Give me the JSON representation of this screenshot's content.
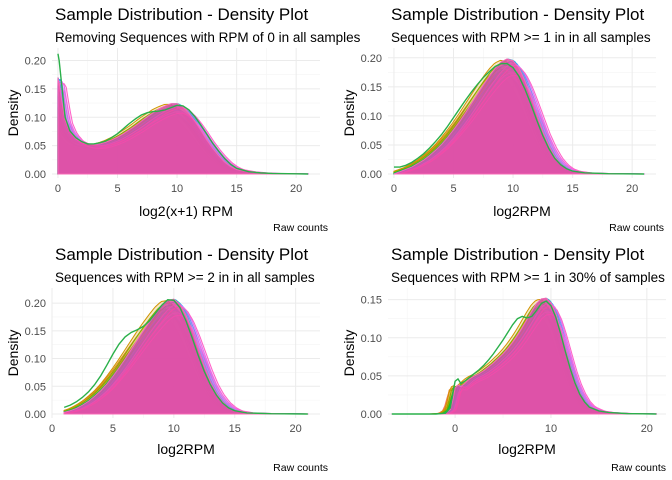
{
  "colors": {
    "sample_palette": [
      "#F8766D",
      "#E7851E",
      "#D09400",
      "#B2A100",
      "#89AC00",
      "#45B500",
      "#00BC51",
      "#00C087",
      "#00C0B2",
      "#00BCD6",
      "#00B3F2",
      "#29A3FF",
      "#9C8DFF",
      "#D277FF",
      "#F166E8",
      "#FF61C7",
      "#FF6C91"
    ],
    "highlight_green": "#2ab04a",
    "fill_main": "#f0449c"
  },
  "chart_data": [
    {
      "type": "area",
      "title": "Sample Distribution - Density Plot",
      "subtitle": "Removing Sequences with RPM of 0 in all samples",
      "xlabel": "log2(x+1) RPM",
      "ylabel": "Density",
      "caption": "Raw counts",
      "xlim": [
        -0.5,
        22
      ],
      "ylim": [
        0,
        0.215
      ],
      "xticks": [
        0,
        5,
        10,
        15,
        20
      ],
      "xtick_labels": [
        "0",
        "5",
        "10",
        "15",
        "20"
      ],
      "yticks": [
        0.0,
        0.05,
        0.1,
        0.15,
        0.2
      ],
      "ytick_labels": [
        "0.00",
        "0.05",
        "0.10",
        "0.15",
        "0.20"
      ],
      "grid": true,
      "curve": [
        [
          0,
          0.17
        ],
        [
          0.1,
          0.16
        ],
        [
          0.3,
          0.13
        ],
        [
          0.6,
          0.095
        ],
        [
          1,
          0.075
        ],
        [
          1.5,
          0.062
        ],
        [
          2,
          0.056
        ],
        [
          2.5,
          0.053
        ],
        [
          3,
          0.052
        ],
        [
          3.5,
          0.053
        ],
        [
          4,
          0.056
        ],
        [
          4.5,
          0.06
        ],
        [
          5,
          0.065
        ],
        [
          5.5,
          0.071
        ],
        [
          6,
          0.078
        ],
        [
          6.5,
          0.085
        ],
        [
          7,
          0.093
        ],
        [
          7.5,
          0.101
        ],
        [
          8,
          0.108
        ],
        [
          8.5,
          0.115
        ],
        [
          9,
          0.12
        ],
        [
          9.5,
          0.124
        ],
        [
          10,
          0.124
        ],
        [
          10.5,
          0.118
        ],
        [
          11,
          0.107
        ],
        [
          11.5,
          0.093
        ],
        [
          12,
          0.077
        ],
        [
          12.5,
          0.06
        ],
        [
          13,
          0.045
        ],
        [
          13.5,
          0.032
        ],
        [
          14,
          0.021
        ],
        [
          14.5,
          0.013
        ],
        [
          15,
          0.008
        ],
        [
          16,
          0.004
        ],
        [
          17,
          0.002
        ],
        [
          18,
          0.001
        ],
        [
          20,
          0.0003
        ],
        [
          21,
          0.0
        ]
      ],
      "highlight_curve": [
        [
          0,
          0.212
        ],
        [
          0.1,
          0.2
        ],
        [
          0.3,
          0.16
        ],
        [
          0.6,
          0.1
        ],
        [
          1,
          0.076
        ],
        [
          1.5,
          0.064
        ],
        [
          2,
          0.057
        ],
        [
          2.5,
          0.053
        ],
        [
          3,
          0.053
        ],
        [
          3.5,
          0.055
        ],
        [
          4,
          0.058
        ],
        [
          4.5,
          0.064
        ],
        [
          5,
          0.071
        ],
        [
          5.5,
          0.08
        ],
        [
          6,
          0.089
        ],
        [
          6.5,
          0.097
        ],
        [
          7,
          0.104
        ],
        [
          7.5,
          0.108
        ],
        [
          8,
          0.11
        ],
        [
          8.5,
          0.111
        ],
        [
          9,
          0.113
        ],
        [
          9.5,
          0.117
        ],
        [
          10,
          0.121
        ],
        [
          10.5,
          0.12
        ],
        [
          11,
          0.113
        ],
        [
          11.5,
          0.101
        ],
        [
          12,
          0.086
        ],
        [
          12.5,
          0.07
        ],
        [
          13,
          0.054
        ],
        [
          13.5,
          0.04
        ],
        [
          14,
          0.027
        ],
        [
          14.5,
          0.017
        ],
        [
          15,
          0.01
        ],
        [
          16,
          0.004
        ],
        [
          17,
          0.002
        ],
        [
          18,
          0.001
        ],
        [
          20,
          0.0003
        ],
        [
          21,
          0.0
        ]
      ]
    },
    {
      "type": "area",
      "title": "Sample Distribution - Density Plot",
      "subtitle": "Sequences with RPM >= 1 in in all samples",
      "xlabel": "log2RPM",
      "ylabel": "Density",
      "caption": "Raw counts",
      "xlim": [
        -0.5,
        22
      ],
      "ylim": [
        0,
        0.21
      ],
      "xticks": [
        0,
        5,
        10,
        15,
        20
      ],
      "xtick_labels": [
        "0",
        "5",
        "10",
        "15",
        "20"
      ],
      "yticks": [
        0.0,
        0.05,
        0.1,
        0.15,
        0.2
      ],
      "ytick_labels": [
        "0.00",
        "0.05",
        "0.10",
        "0.15",
        "0.20"
      ],
      "grid": true,
      "curve": [
        [
          0,
          0.0
        ],
        [
          0.5,
          0.004
        ],
        [
          1,
          0.008
        ],
        [
          1.5,
          0.012
        ],
        [
          2,
          0.018
        ],
        [
          2.5,
          0.024
        ],
        [
          3,
          0.032
        ],
        [
          3.5,
          0.041
        ],
        [
          4,
          0.051
        ],
        [
          4.5,
          0.063
        ],
        [
          5,
          0.076
        ],
        [
          5.5,
          0.09
        ],
        [
          6,
          0.105
        ],
        [
          6.5,
          0.121
        ],
        [
          7,
          0.137
        ],
        [
          7.5,
          0.153
        ],
        [
          8,
          0.168
        ],
        [
          8.5,
          0.182
        ],
        [
          9,
          0.193
        ],
        [
          9.5,
          0.198
        ],
        [
          10,
          0.195
        ],
        [
          10.5,
          0.182
        ],
        [
          11,
          0.16
        ],
        [
          11.5,
          0.132
        ],
        [
          12,
          0.102
        ],
        [
          12.5,
          0.073
        ],
        [
          13,
          0.049
        ],
        [
          13.5,
          0.03
        ],
        [
          14,
          0.017
        ],
        [
          14.5,
          0.009
        ],
        [
          15,
          0.005
        ],
        [
          16,
          0.002
        ],
        [
          18,
          0.0005
        ],
        [
          21,
          0.0
        ]
      ],
      "highlight_curve": [
        [
          0,
          0.012
        ],
        [
          0.5,
          0.012
        ],
        [
          1,
          0.015
        ],
        [
          1.5,
          0.02
        ],
        [
          2,
          0.027
        ],
        [
          2.5,
          0.035
        ],
        [
          3,
          0.045
        ],
        [
          3.5,
          0.056
        ],
        [
          4,
          0.068
        ],
        [
          4.5,
          0.082
        ],
        [
          5,
          0.097
        ],
        [
          5.5,
          0.112
        ],
        [
          6,
          0.127
        ],
        [
          6.5,
          0.141
        ],
        [
          7,
          0.154
        ],
        [
          7.5,
          0.166
        ],
        [
          8,
          0.176
        ],
        [
          8.5,
          0.185
        ],
        [
          9,
          0.19
        ],
        [
          9.5,
          0.19
        ],
        [
          10,
          0.183
        ],
        [
          10.5,
          0.168
        ],
        [
          11,
          0.146
        ],
        [
          11.5,
          0.12
        ],
        [
          12,
          0.092
        ],
        [
          12.5,
          0.066
        ],
        [
          13,
          0.044
        ],
        [
          13.5,
          0.027
        ],
        [
          14,
          0.016
        ],
        [
          14.5,
          0.009
        ],
        [
          15,
          0.005
        ],
        [
          16,
          0.002
        ],
        [
          18,
          0.0005
        ],
        [
          21,
          0.0
        ]
      ]
    },
    {
      "type": "area",
      "title": "Sample Distribution - Density Plot",
      "subtitle": "Sequences with RPM >= 2 in in all samples",
      "xlabel": "log2RPM",
      "ylabel": "Density",
      "caption": "Raw counts",
      "xlim": [
        0,
        22
      ],
      "ylim": [
        0,
        0.22
      ],
      "xticks": [
        0,
        5,
        10,
        15,
        20
      ],
      "xtick_labels": [
        "0",
        "5",
        "10",
        "15",
        "20"
      ],
      "yticks": [
        0.0,
        0.05,
        0.1,
        0.15,
        0.2
      ],
      "ytick_labels": [
        "0.00",
        "0.05",
        "0.10",
        "0.15",
        "0.20"
      ],
      "grid": true,
      "curve": [
        [
          1,
          0.003
        ],
        [
          1.5,
          0.006
        ],
        [
          2,
          0.01
        ],
        [
          2.5,
          0.016
        ],
        [
          3,
          0.023
        ],
        [
          3.5,
          0.032
        ],
        [
          4,
          0.042
        ],
        [
          4.5,
          0.054
        ],
        [
          5,
          0.068
        ],
        [
          5.5,
          0.083
        ],
        [
          6,
          0.099
        ],
        [
          6.5,
          0.116
        ],
        [
          7,
          0.133
        ],
        [
          7.5,
          0.15
        ],
        [
          8,
          0.166
        ],
        [
          8.5,
          0.181
        ],
        [
          9,
          0.195
        ],
        [
          9.5,
          0.205
        ],
        [
          10,
          0.207
        ],
        [
          10.5,
          0.198
        ],
        [
          11,
          0.178
        ],
        [
          11.5,
          0.15
        ],
        [
          12,
          0.118
        ],
        [
          12.5,
          0.086
        ],
        [
          13,
          0.058
        ],
        [
          13.5,
          0.037
        ],
        [
          14,
          0.022
        ],
        [
          14.5,
          0.012
        ],
        [
          15,
          0.006
        ],
        [
          16,
          0.002
        ],
        [
          18,
          0.0005
        ],
        [
          21,
          0.0
        ]
      ],
      "highlight_curve": [
        [
          1,
          0.012
        ],
        [
          1.5,
          0.016
        ],
        [
          2,
          0.022
        ],
        [
          2.5,
          0.03
        ],
        [
          3,
          0.04
        ],
        [
          3.5,
          0.053
        ],
        [
          4,
          0.069
        ],
        [
          4.5,
          0.088
        ],
        [
          5,
          0.108
        ],
        [
          5.5,
          0.126
        ],
        [
          6,
          0.139
        ],
        [
          6.5,
          0.147
        ],
        [
          7,
          0.152
        ],
        [
          7.5,
          0.158
        ],
        [
          8,
          0.168
        ],
        [
          8.5,
          0.182
        ],
        [
          9,
          0.196
        ],
        [
          9.5,
          0.206
        ],
        [
          10,
          0.205
        ],
        [
          10.5,
          0.192
        ],
        [
          11,
          0.168
        ],
        [
          11.5,
          0.138
        ],
        [
          12,
          0.106
        ],
        [
          12.5,
          0.077
        ],
        [
          13,
          0.053
        ],
        [
          13.5,
          0.034
        ],
        [
          14,
          0.02
        ],
        [
          14.5,
          0.011
        ],
        [
          15,
          0.006
        ],
        [
          16,
          0.002
        ],
        [
          18,
          0.0005
        ],
        [
          21,
          0.0
        ]
      ]
    },
    {
      "type": "area",
      "title": "Sample Distribution - Density Plot",
      "subtitle": "Sequences with RPM >= 1 in 30% of samples",
      "xlabel": "log2RPM",
      "ylabel": "Density",
      "caption": "Raw counts",
      "xlim": [
        -7,
        22
      ],
      "ylim": [
        0,
        0.16
      ],
      "xticks": [
        0,
        10,
        20
      ],
      "xtick_labels": [
        "0",
        "10",
        "20"
      ],
      "yticks": [
        0.0,
        0.05,
        0.1,
        0.15
      ],
      "ytick_labels": [
        "0.00",
        "0.05",
        "0.10",
        "0.15"
      ],
      "grid": true,
      "curve": [
        [
          -6.6,
          0.0
        ],
        [
          -2,
          0.0
        ],
        [
          -1,
          0.001
        ],
        [
          -0.5,
          0.006
        ],
        [
          -0.2,
          0.02
        ],
        [
          0,
          0.034
        ],
        [
          0.3,
          0.038
        ],
        [
          0.6,
          0.036
        ],
        [
          1,
          0.04
        ],
        [
          1.5,
          0.046
        ],
        [
          2,
          0.05
        ],
        [
          2.5,
          0.053
        ],
        [
          3,
          0.057
        ],
        [
          3.5,
          0.062
        ],
        [
          4,
          0.067
        ],
        [
          4.5,
          0.073
        ],
        [
          5,
          0.079
        ],
        [
          5.5,
          0.086
        ],
        [
          6,
          0.094
        ],
        [
          6.5,
          0.103
        ],
        [
          7,
          0.113
        ],
        [
          7.5,
          0.124
        ],
        [
          8,
          0.135
        ],
        [
          8.5,
          0.145
        ],
        [
          9,
          0.151
        ],
        [
          9.5,
          0.152
        ],
        [
          10,
          0.146
        ],
        [
          10.5,
          0.132
        ],
        [
          11,
          0.111
        ],
        [
          11.5,
          0.087
        ],
        [
          12,
          0.063
        ],
        [
          12.5,
          0.043
        ],
        [
          13,
          0.028
        ],
        [
          13.5,
          0.017
        ],
        [
          14,
          0.01
        ],
        [
          15,
          0.004
        ],
        [
          16,
          0.002
        ],
        [
          18,
          0.0005
        ],
        [
          21,
          0.0
        ]
      ],
      "highlight_curve": [
        [
          -6.6,
          0.0
        ],
        [
          -2,
          0.0
        ],
        [
          -1,
          0.001
        ],
        [
          -0.5,
          0.008
        ],
        [
          -0.2,
          0.03
        ],
        [
          0,
          0.043
        ],
        [
          0.3,
          0.046
        ],
        [
          0.6,
          0.04
        ],
        [
          1,
          0.043
        ],
        [
          1.5,
          0.048
        ],
        [
          2,
          0.053
        ],
        [
          2.5,
          0.058
        ],
        [
          3,
          0.064
        ],
        [
          3.5,
          0.071
        ],
        [
          4,
          0.079
        ],
        [
          4.5,
          0.088
        ],
        [
          5,
          0.097
        ],
        [
          5.5,
          0.107
        ],
        [
          6,
          0.117
        ],
        [
          6.5,
          0.125
        ],
        [
          7,
          0.128
        ],
        [
          7.5,
          0.126
        ],
        [
          8,
          0.128
        ],
        [
          8.5,
          0.136
        ],
        [
          9,
          0.145
        ],
        [
          9.5,
          0.148
        ],
        [
          10,
          0.142
        ],
        [
          10.5,
          0.127
        ],
        [
          11,
          0.106
        ],
        [
          11.5,
          0.082
        ],
        [
          12,
          0.06
        ],
        [
          12.5,
          0.041
        ],
        [
          13,
          0.026
        ],
        [
          13.5,
          0.016
        ],
        [
          14,
          0.009
        ],
        [
          15,
          0.004
        ],
        [
          16,
          0.002
        ],
        [
          18,
          0.0005
        ],
        [
          21,
          0.0
        ]
      ]
    }
  ]
}
